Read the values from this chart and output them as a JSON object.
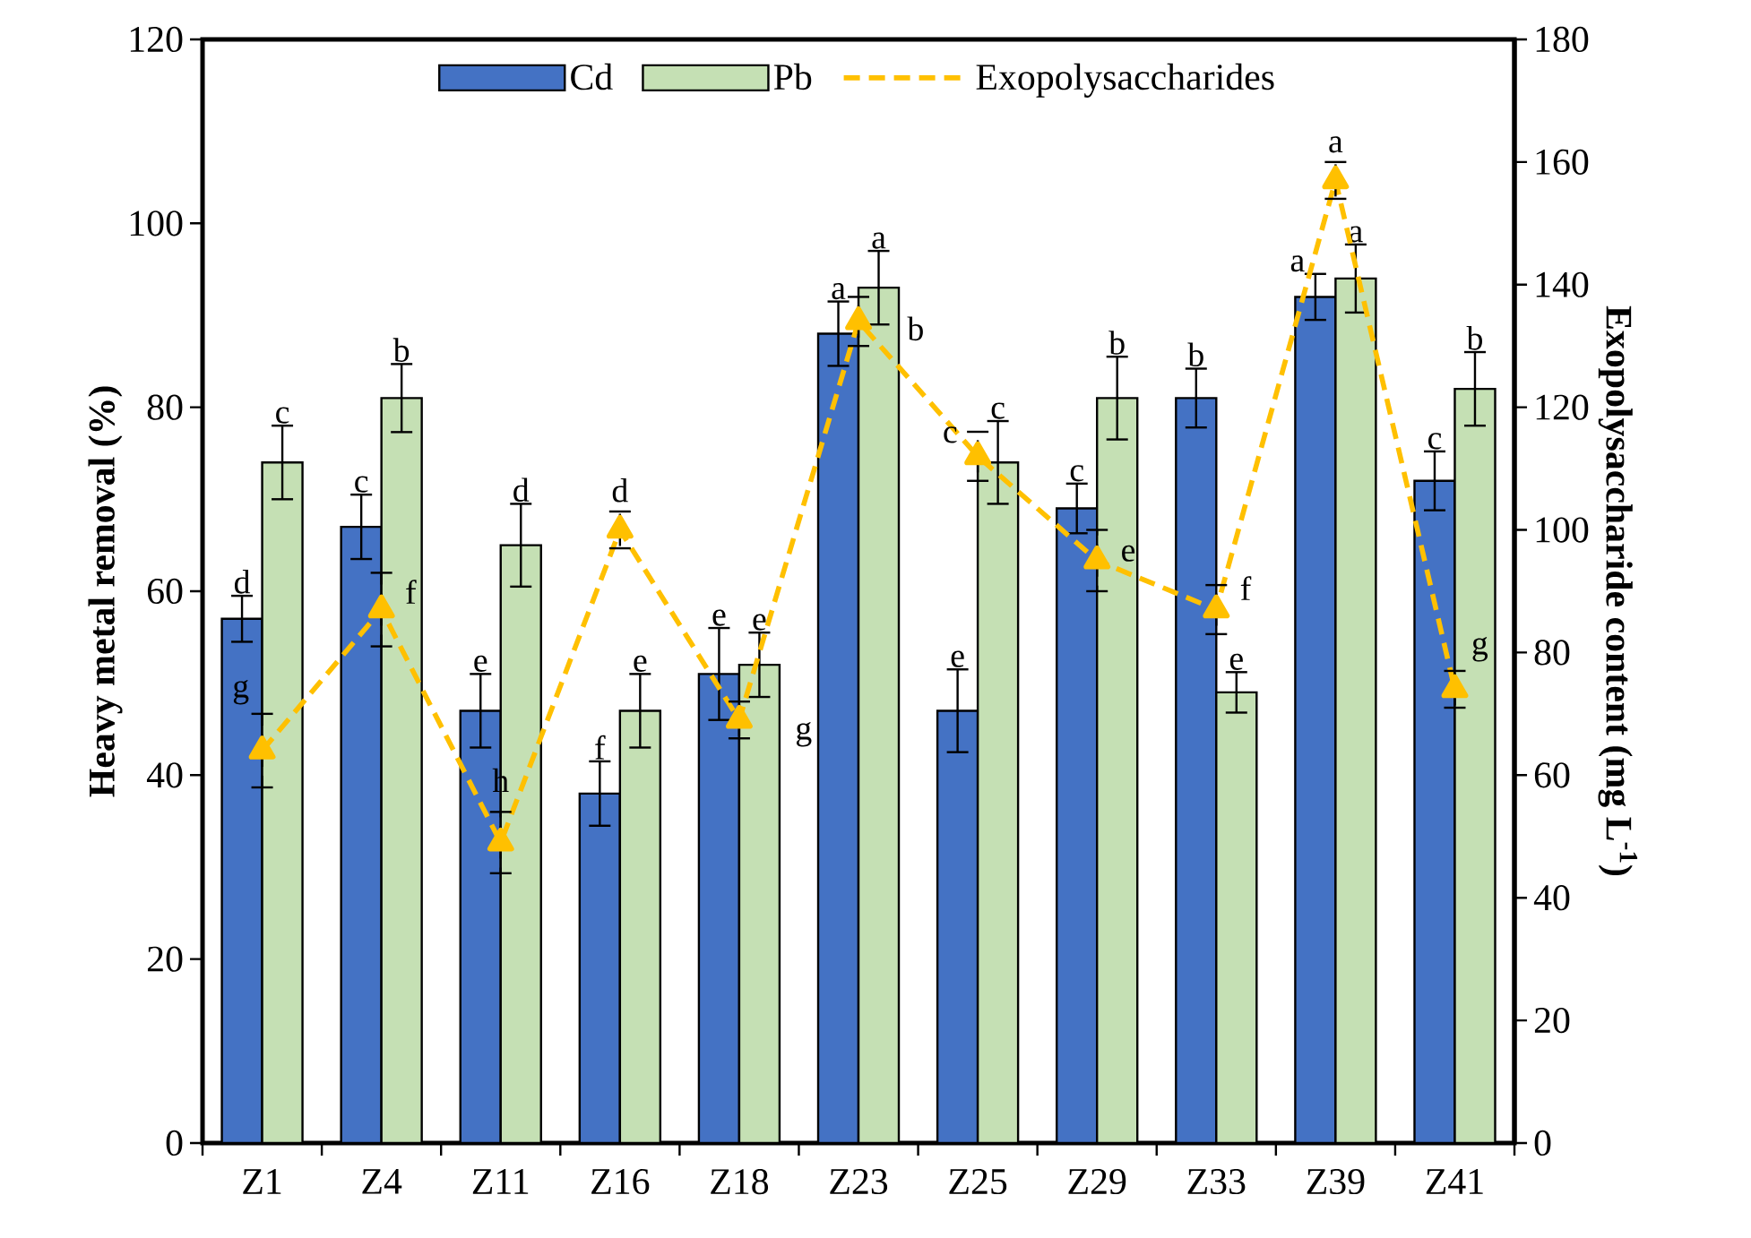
{
  "chart_data": {
    "type": "bar",
    "ylabel": "Heavy metal removal (%)",
    "y2label": "Exopolysaccharide content (mg L$^{-1}$)",
    "categories": [
      "Z1",
      "Z4",
      "Z11",
      "Z16",
      "Z18",
      "Z23",
      "Z25",
      "Z29",
      "Z33",
      "Z39",
      "Z41"
    ],
    "series": [
      {
        "name": "Cd",
        "color": "#4472c4",
        "values": [
          57,
          67,
          47,
          38,
          51,
          88,
          47,
          69,
          81,
          92,
          72
        ],
        "errors": [
          2.5,
          3.5,
          4,
          3.5,
          5,
          3.5,
          4.5,
          2.7,
          3.2,
          2.5,
          3.2
        ],
        "value_labels": [
          "d",
          "c",
          "e",
          "f",
          "e",
          "a",
          "e",
          "c",
          "b",
          "a",
          "c"
        ]
      },
      {
        "name": "Pb",
        "color": "#c5e0b4",
        "values": [
          74,
          81,
          65,
          47,
          52,
          93,
          74,
          81,
          49,
          94,
          82
        ],
        "errors": [
          4,
          3.7,
          4.5,
          4,
          3.5,
          4,
          4.5,
          4.5,
          2.2,
          3.7,
          4
        ],
        "value_labels": [
          "c",
          "b",
          "d",
          "e",
          "e",
          "a",
          "c",
          "b",
          "e",
          "a",
          "b"
        ]
      },
      {
        "name": "Exopolysaccharides",
        "type": "line",
        "axis": "y2",
        "color": "#ffc000",
        "marker": "triangle",
        "line_style": "dashed",
        "values": [
          64,
          87,
          49,
          100,
          69,
          134,
          112,
          95,
          87,
          157,
          74
        ],
        "errors": [
          6,
          6,
          5,
          3,
          3,
          4,
          4,
          5,
          4,
          3,
          3
        ],
        "value_labels": [
          "g",
          "f",
          "h",
          "d",
          "g",
          "b",
          "c",
          "e",
          "f",
          "a",
          "g"
        ]
      }
    ],
    "ylim": [
      0,
      120
    ],
    "yticks": [
      0,
      20,
      40,
      60,
      80,
      100,
      120
    ],
    "y2lim": [
      0,
      180
    ],
    "y2ticks": [
      0,
      20,
      40,
      60,
      80,
      100,
      120,
      140,
      160,
      180
    ],
    "legend": "top",
    "grid": false
  }
}
